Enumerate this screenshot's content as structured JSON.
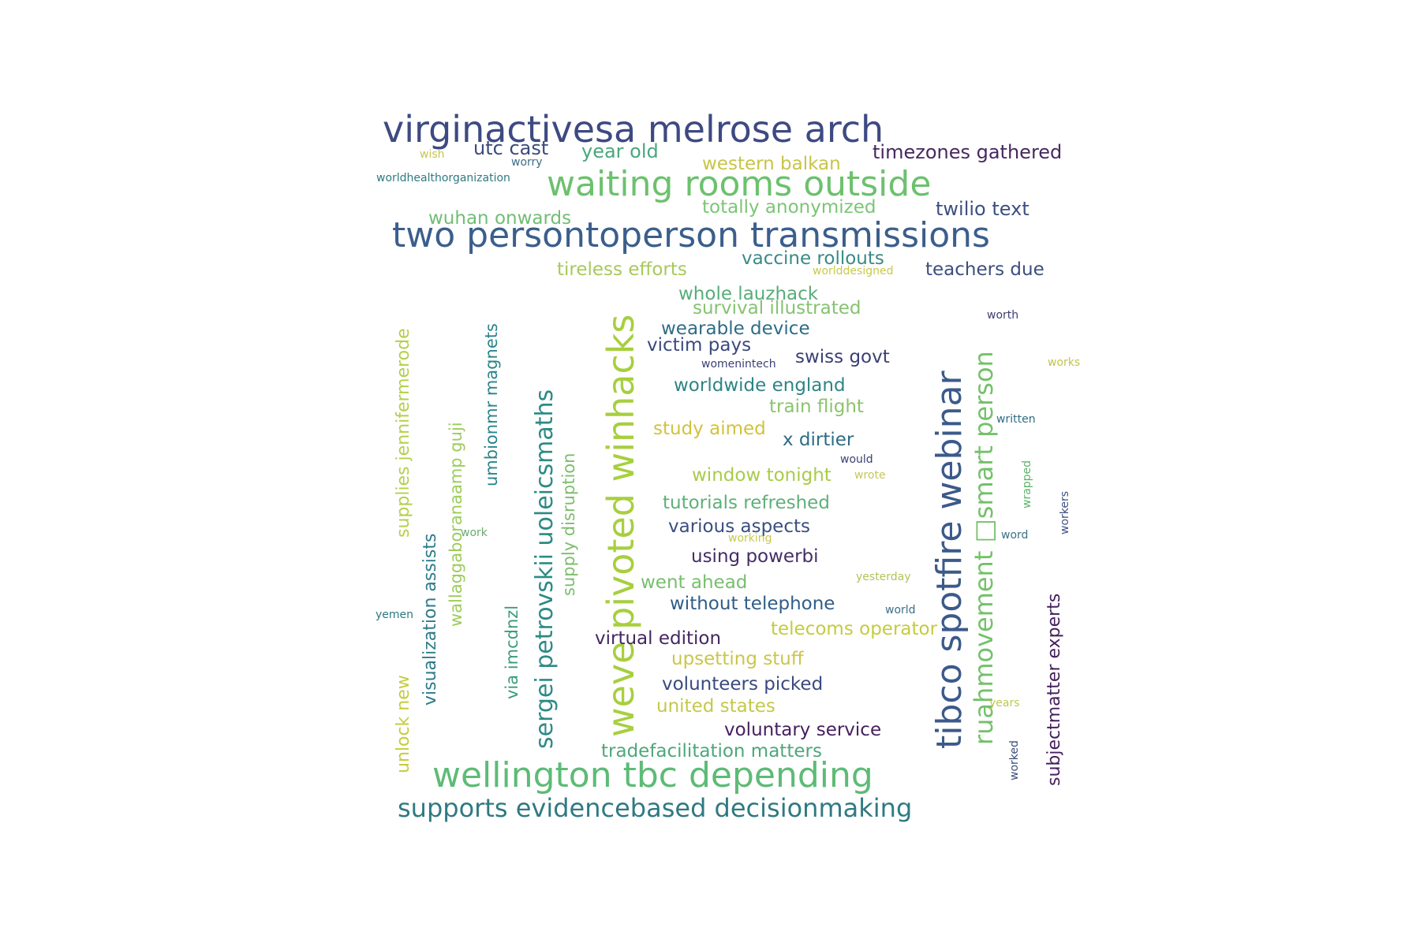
{
  "words": [
    {
      "text": "virginactivesa melrose arch",
      "color": "#3d4a82"
    },
    {
      "text": "two persontoperson transmissions",
      "color": "#3b5e8c"
    },
    {
      "text": "waiting rooms outside",
      "color": "#6cc16d"
    },
    {
      "text": "wellington tbc depending",
      "color": "#5dbb76"
    },
    {
      "text": "supports evidencebased decisionmaking",
      "color": "#2f7a82"
    },
    {
      "text": "weve pivoted winhacks",
      "color": "#a7cf3f"
    },
    {
      "text": "tibco spotfire webinar",
      "color": "#3b5a8a"
    },
    {
      "text": "ruahmovement □smart person",
      "color": "#74c16a"
    },
    {
      "text": "sergei petrovskii uoleicsmaths",
      "color": "#2c8a85"
    },
    {
      "text": "supplies jennifermerode",
      "color": "#b5cf4b"
    },
    {
      "text": "wallaggaboranaamp guji",
      "color": "#9ccc5b"
    },
    {
      "text": "visualization assists",
      "color": "#2e7b8a"
    },
    {
      "text": "umbionmr magnets",
      "color": "#2a848a"
    },
    {
      "text": "supply disruption",
      "color": "#7dbd6e"
    },
    {
      "text": "via imcdnzl",
      "color": "#3a9b7e"
    },
    {
      "text": "unlock new",
      "color": "#c6cc3b"
    },
    {
      "text": "subjectmatter experts",
      "color": "#45205e"
    },
    {
      "text": "utc cast",
      "color": "#3b4a7a"
    },
    {
      "text": "year old",
      "color": "#4aa67e"
    },
    {
      "text": "timezones gathered",
      "color": "#47285f"
    },
    {
      "text": "western balkan",
      "color": "#c8c447"
    },
    {
      "text": "totally anonymized",
      "color": "#7cc576"
    },
    {
      "text": "twilio text",
      "color": "#3c5080"
    },
    {
      "text": "wuhan onwards",
      "color": "#72bd75"
    },
    {
      "text": "vaccine rollouts",
      "color": "#3a8a87"
    },
    {
      "text": "tireless efforts",
      "color": "#a8c95a"
    },
    {
      "text": "teachers due",
      "color": "#3c4e7e"
    },
    {
      "text": "whole lauzhack",
      "color": "#57ad78"
    },
    {
      "text": "survival illustrated",
      "color": "#86c271"
    },
    {
      "text": "wearable device",
      "color": "#2f6c86"
    },
    {
      "text": "victim pays",
      "color": "#3a4a7e"
    },
    {
      "text": "swiss govt",
      "color": "#3b3f74"
    },
    {
      "text": "worldwide england",
      "color": "#2e8485"
    },
    {
      "text": "train flight",
      "color": "#8bc46a"
    },
    {
      "text": "study aimed",
      "color": "#d1c23d"
    },
    {
      "text": "x dirtier",
      "color": "#2d6b86"
    },
    {
      "text": "window tonight",
      "color": "#a9cb4a"
    },
    {
      "text": "tutorials refreshed",
      "color": "#5fb078"
    },
    {
      "text": "various aspects",
      "color": "#3a4e80"
    },
    {
      "text": "using powerbi",
      "color": "#442d66"
    },
    {
      "text": "went ahead",
      "color": "#76bf6e"
    },
    {
      "text": "without telephone",
      "color": "#2f5d88"
    },
    {
      "text": "telecoms operator",
      "color": "#c5cb3e"
    },
    {
      "text": "virtual edition",
      "color": "#43275f"
    },
    {
      "text": "upsetting stuff",
      "color": "#cbc64a"
    },
    {
      "text": "volunteers picked",
      "color": "#3a4a7e"
    },
    {
      "text": "united states",
      "color": "#c3c94a"
    },
    {
      "text": "voluntary service",
      "color": "#46205e"
    },
    {
      "text": "tradefacilitation matters",
      "color": "#4ea77a"
    },
    {
      "text": "wish",
      "color": "#c8c454"
    },
    {
      "text": "worry",
      "color": "#3d6e87"
    },
    {
      "text": "worldhealthorganization",
      "color": "#2f7a82"
    },
    {
      "text": "worlddesigned",
      "color": "#c7c94b"
    },
    {
      "text": "worth",
      "color": "#3c3f72"
    },
    {
      "text": "works",
      "color": "#c2c24e"
    },
    {
      "text": "womenintech",
      "color": "#3c3f72"
    },
    {
      "text": "written",
      "color": "#2f6e86"
    },
    {
      "text": "would",
      "color": "#3d3f72"
    },
    {
      "text": "wrote",
      "color": "#c5c65a"
    },
    {
      "text": "wrapped",
      "color": "#5db36a"
    },
    {
      "text": "workers",
      "color": "#3e5080"
    },
    {
      "text": "work",
      "color": "#6aac6e"
    },
    {
      "text": "working",
      "color": "#c7c84c"
    },
    {
      "text": "word",
      "color": "#3a7282"
    },
    {
      "text": "yesterday",
      "color": "#b4c25a"
    },
    {
      "text": "world",
      "color": "#3d6e87"
    },
    {
      "text": "yemen",
      "color": "#2c7a82"
    },
    {
      "text": "years",
      "color": "#bcc84e"
    },
    {
      "text": "worked",
      "color": "#3a4c7c"
    }
  ]
}
